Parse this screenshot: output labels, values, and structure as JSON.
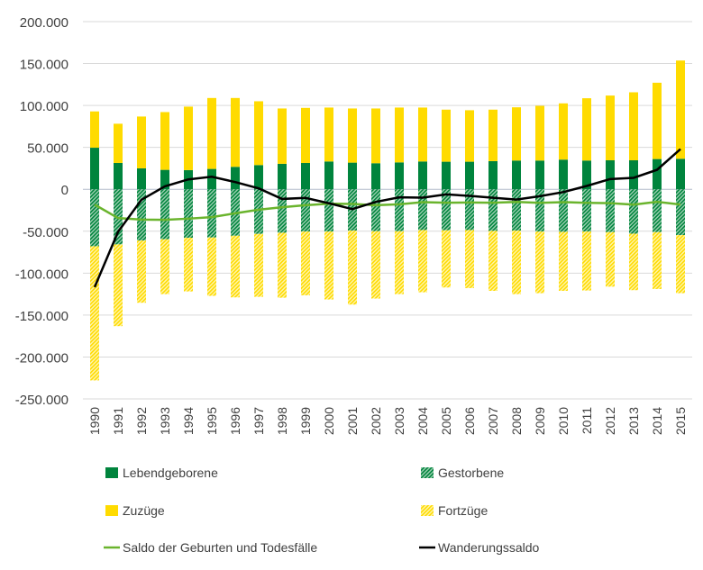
{
  "chart_data": {
    "type": "bar",
    "stacked": true,
    "categories": [
      "1990",
      "1991",
      "1992",
      "1993",
      "1994",
      "1995",
      "1996",
      "1997",
      "1998",
      "1999",
      "2000",
      "2001",
      "2002",
      "2003",
      "2004",
      "2005",
      "2006",
      "2007",
      "2008",
      "2009",
      "2010",
      "2011",
      "2012",
      "2013",
      "2014",
      "2015"
    ],
    "ylim": [
      -250000,
      200000
    ],
    "yticks": [
      200000,
      150000,
      100000,
      50000,
      0,
      -50000,
      -100000,
      -150000,
      -200000,
      -250000
    ],
    "ytick_labels": [
      "200.000",
      "150.000",
      "100.000",
      "50.000",
      "0",
      "-50.000",
      "-100.000",
      "-150.000",
      "-200.000",
      "-250.000"
    ],
    "grid": true,
    "legend_position": "bottom",
    "colors": {
      "births": "#00843d",
      "deaths": "#00843d",
      "in": "#ffdb00",
      "out": "#ffdb00",
      "natural": "#6ab42d",
      "migration": "#000000"
    },
    "series": [
      {
        "name": "Lebendgeboren",
        "kind": "bar",
        "values": [
          49600,
          31400,
          25000,
          23200,
          22900,
          24300,
          26800,
          28900,
          30400,
          31400,
          33200,
          31800,
          31100,
          32100,
          33200,
          32900,
          32900,
          33600,
          34300,
          34300,
          35400,
          34300,
          34600,
          34600,
          36100,
          36400
        ]
      },
      {
        "name": "Gestorbene",
        "kind": "bar-hatched",
        "values": [
          -67900,
          -65700,
          -61100,
          -59600,
          -57900,
          -57500,
          -55400,
          -53200,
          -51800,
          -50400,
          -50400,
          -49300,
          -50000,
          -50000,
          -48600,
          -48900,
          -48600,
          -49600,
          -49300,
          -50400,
          -50700,
          -50400,
          -51100,
          -52900,
          -51100,
          -54600
        ]
      },
      {
        "name": "Zuzüge",
        "kind": "bar",
        "values": [
          43300,
          46800,
          61800,
          68900,
          75700,
          84600,
          82100,
          76100,
          66000,
          65700,
          64300,
          64600,
          65300,
          65400,
          64300,
          62100,
          61400,
          61400,
          63500,
          65300,
          67100,
          74300,
          77200,
          81100,
          91000,
          117200
        ]
      },
      {
        "name": "Fortzüge",
        "kind": "bar-hatched",
        "values": [
          -160000,
          -97500,
          -74200,
          -65400,
          -63900,
          -69600,
          -73500,
          -75000,
          -77500,
          -76000,
          -81000,
          -88200,
          -80300,
          -75000,
          -74200,
          -68200,
          -69200,
          -71500,
          -75700,
          -73500,
          -70400,
          -70300,
          -65000,
          -67400,
          -67800,
          -69300
        ]
      },
      {
        "name": "Saldo der Geburten und Todesfälle",
        "kind": "line",
        "values": [
          -18300,
          -34300,
          -36100,
          -36400,
          -35000,
          -33200,
          -28600,
          -24300,
          -21400,
          -19000,
          -17200,
          -17500,
          -18900,
          -17900,
          -15400,
          -16000,
          -15700,
          -16000,
          -15000,
          -16100,
          -15300,
          -16100,
          -16500,
          -18300,
          -15000,
          -18200
        ]
      },
      {
        "name": "Wanderungssaldo",
        "kind": "line",
        "values": [
          -116700,
          -50700,
          -12400,
          3500,
          11800,
          15000,
          8600,
          1100,
          -11500,
          -10300,
          -16700,
          -23600,
          -15000,
          -9600,
          -9900,
          -6100,
          -7800,
          -10100,
          -12200,
          -8200,
          -3300,
          4000,
          12200,
          13700,
          23200,
          47900
        ]
      }
    ],
    "legend": [
      "Lebendgeborene",
      "Gestorbene",
      "Zuzüge",
      "Fortzüge",
      "Saldo der Geburten und Todesfälle",
      "Wanderungssaldo"
    ]
  }
}
